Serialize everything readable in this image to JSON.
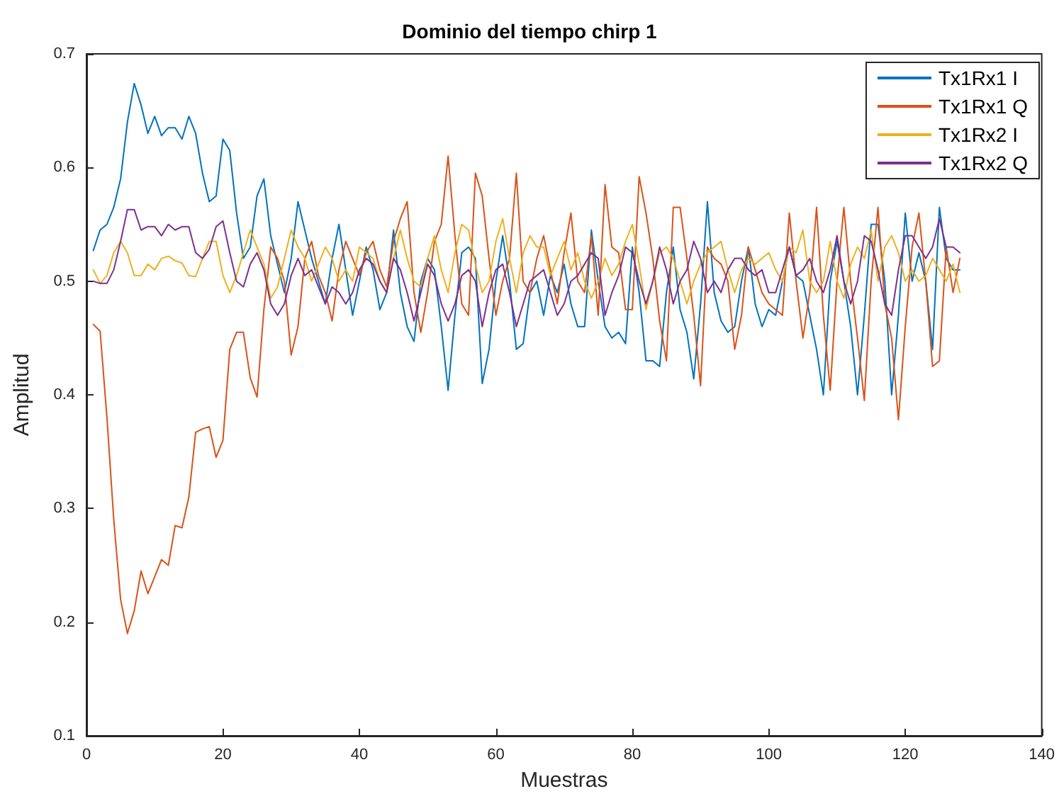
{
  "chart_data": {
    "type": "line",
    "title": "Dominio del tiempo chirp 1",
    "xlabel": "Muestras",
    "ylabel": "Amplitud",
    "x": [
      1,
      2,
      3,
      4,
      5,
      6,
      7,
      8,
      9,
      10,
      11,
      12,
      13,
      14,
      15,
      16,
      17,
      18,
      19,
      20,
      21,
      22,
      23,
      24,
      25,
      26,
      27,
      28,
      29,
      30,
      31,
      32,
      33,
      34,
      35,
      36,
      37,
      38,
      39,
      40,
      41,
      42,
      43,
      44,
      45,
      46,
      47,
      48,
      49,
      50,
      51,
      52,
      53,
      54,
      55,
      56,
      57,
      58,
      59,
      60,
      61,
      62,
      63,
      64,
      65,
      66,
      67,
      68,
      69,
      70,
      71,
      72,
      73,
      74,
      75,
      76,
      77,
      78,
      79,
      80,
      81,
      82,
      83,
      84,
      85,
      86,
      87,
      88,
      89,
      90,
      91,
      92,
      93,
      94,
      95,
      96,
      97,
      98,
      99,
      100,
      101,
      102,
      103,
      104,
      105,
      106,
      107,
      108,
      109,
      110,
      111,
      112,
      113,
      114,
      115,
      116,
      117,
      118,
      119,
      120,
      121,
      122,
      123,
      124,
      125,
      126,
      127,
      128
    ],
    "xlim": [
      0,
      140
    ],
    "xticks": [
      0,
      20,
      40,
      60,
      80,
      100,
      120,
      140
    ],
    "ylim": [
      0.1,
      0.7
    ],
    "yticks": [
      0.1,
      0.2,
      0.3,
      0.4,
      0.5,
      0.6,
      0.7
    ],
    "grid": false,
    "legend": "top right",
    "marker": "none",
    "line_style": "solid",
    "series": [
      {
        "name": "Tx1Rx1 I",
        "color": "#0072bd",
        "values": [
          0.527,
          0.545,
          0.55,
          0.565,
          0.59,
          0.64,
          0.674,
          0.655,
          0.63,
          0.645,
          0.628,
          0.635,
          0.635,
          0.625,
          0.645,
          0.63,
          0.595,
          0.57,
          0.575,
          0.625,
          0.615,
          0.56,
          0.52,
          0.53,
          0.575,
          0.59,
          0.54,
          0.515,
          0.49,
          0.52,
          0.57,
          0.545,
          0.52,
          0.5,
          0.48,
          0.52,
          0.55,
          0.51,
          0.47,
          0.5,
          0.53,
          0.51,
          0.475,
          0.49,
          0.545,
          0.49,
          0.46,
          0.447,
          0.5,
          0.52,
          0.51,
          0.46,
          0.404,
          0.47,
          0.525,
          0.53,
          0.52,
          0.41,
          0.44,
          0.5,
          0.54,
          0.5,
          0.44,
          0.445,
          0.49,
          0.5,
          0.47,
          0.505,
          0.49,
          0.515,
          0.48,
          0.46,
          0.46,
          0.545,
          0.5,
          0.46,
          0.45,
          0.455,
          0.445,
          0.53,
          0.49,
          0.43,
          0.43,
          0.425,
          0.49,
          0.53,
          0.475,
          0.455,
          0.414,
          0.48,
          0.57,
          0.49,
          0.465,
          0.455,
          0.46,
          0.5,
          0.53,
          0.48,
          0.46,
          0.475,
          0.47,
          0.5,
          0.53,
          0.505,
          0.5,
          0.47,
          0.44,
          0.4,
          0.5,
          0.535,
          0.5,
          0.46,
          0.4,
          0.47,
          0.55,
          0.55,
          0.5,
          0.4,
          0.47,
          0.56,
          0.5,
          0.525,
          0.5,
          0.44,
          0.565,
          0.52,
          0.51,
          0.51
        ]
      },
      {
        "name": "Tx1Rx1 Q",
        "color": "#d95319",
        "values": [
          0.462,
          0.456,
          0.38,
          0.29,
          0.22,
          0.19,
          0.21,
          0.245,
          0.225,
          0.24,
          0.255,
          0.25,
          0.285,
          0.283,
          0.31,
          0.367,
          0.37,
          0.372,
          0.345,
          0.36,
          0.44,
          0.455,
          0.455,
          0.415,
          0.398,
          0.475,
          0.53,
          0.52,
          0.5,
          0.435,
          0.46,
          0.52,
          0.535,
          0.505,
          0.49,
          0.465,
          0.51,
          0.535,
          0.52,
          0.505,
          0.525,
          0.535,
          0.51,
          0.495,
          0.535,
          0.555,
          0.57,
          0.49,
          0.455,
          0.49,
          0.535,
          0.55,
          0.61,
          0.54,
          0.48,
          0.47,
          0.595,
          0.575,
          0.52,
          0.47,
          0.5,
          0.52,
          0.595,
          0.5,
          0.49,
          0.52,
          0.54,
          0.51,
          0.48,
          0.525,
          0.56,
          0.5,
          0.49,
          0.54,
          0.47,
          0.585,
          0.53,
          0.525,
          0.475,
          0.475,
          0.592,
          0.56,
          0.52,
          0.465,
          0.43,
          0.565,
          0.565,
          0.52,
          0.47,
          0.408,
          0.53,
          0.52,
          0.515,
          0.5,
          0.44,
          0.47,
          0.53,
          0.51,
          0.49,
          0.48,
          0.475,
          0.47,
          0.56,
          0.5,
          0.45,
          0.49,
          0.565,
          0.47,
          0.404,
          0.5,
          0.565,
          0.5,
          0.45,
          0.395,
          0.5,
          0.565,
          0.48,
          0.45,
          0.378,
          0.46,
          0.53,
          0.56,
          0.5,
          0.425,
          0.43,
          0.53,
          0.49,
          0.52
        ]
      },
      {
        "name": "Tx1Rx2 I",
        "color": "#edb120",
        "values": [
          0.51,
          0.498,
          0.505,
          0.525,
          0.535,
          0.525,
          0.505,
          0.505,
          0.515,
          0.51,
          0.52,
          0.522,
          0.518,
          0.516,
          0.505,
          0.504,
          0.52,
          0.535,
          0.535,
          0.505,
          0.49,
          0.505,
          0.525,
          0.545,
          0.53,
          0.515,
          0.485,
          0.495,
          0.52,
          0.545,
          0.53,
          0.52,
          0.5,
          0.515,
          0.53,
          0.52,
          0.5,
          0.51,
          0.5,
          0.53,
          0.525,
          0.52,
          0.5,
          0.49,
          0.52,
          0.545,
          0.52,
          0.5,
          0.495,
          0.52,
          0.54,
          0.51,
          0.49,
          0.525,
          0.55,
          0.545,
          0.515,
          0.49,
          0.5,
          0.535,
          0.555,
          0.52,
          0.49,
          0.525,
          0.54,
          0.53,
          0.53,
          0.505,
          0.52,
          0.535,
          0.51,
          0.525,
          0.5,
          0.485,
          0.5,
          0.52,
          0.505,
          0.515,
          0.535,
          0.55,
          0.515,
          0.475,
          0.5,
          0.525,
          0.53,
          0.52,
          0.5,
          0.48,
          0.5,
          0.515,
          0.525,
          0.53,
          0.535,
          0.51,
          0.49,
          0.51,
          0.52,
          0.515,
          0.52,
          0.525,
          0.51,
          0.5,
          0.53,
          0.525,
          0.545,
          0.5,
          0.49,
          0.5,
          0.535,
          0.5,
          0.485,
          0.515,
          0.53,
          0.52,
          0.545,
          0.5,
          0.53,
          0.54,
          0.525,
          0.5,
          0.51,
          0.5,
          0.505,
          0.52,
          0.51,
          0.5,
          0.515,
          0.49
        ]
      },
      {
        "name": "Tx1Rx2 Q",
        "color": "#7e2f8e",
        "values": [
          0.5,
          0.498,
          0.498,
          0.51,
          0.535,
          0.563,
          0.563,
          0.545,
          0.548,
          0.548,
          0.54,
          0.55,
          0.545,
          0.548,
          0.548,
          0.525,
          0.52,
          0.528,
          0.548,
          0.553,
          0.525,
          0.5,
          0.495,
          0.515,
          0.525,
          0.51,
          0.48,
          0.47,
          0.48,
          0.505,
          0.52,
          0.505,
          0.51,
          0.495,
          0.48,
          0.495,
          0.49,
          0.48,
          0.49,
          0.51,
          0.52,
          0.515,
          0.5,
          0.49,
          0.52,
          0.51,
          0.49,
          0.465,
          0.49,
          0.515,
          0.505,
          0.48,
          0.465,
          0.48,
          0.505,
          0.51,
          0.5,
          0.46,
          0.49,
          0.51,
          0.515,
          0.49,
          0.46,
          0.48,
          0.5,
          0.505,
          0.51,
          0.49,
          0.47,
          0.48,
          0.5,
          0.505,
          0.515,
          0.525,
          0.52,
          0.47,
          0.49,
          0.505,
          0.53,
          0.525,
          0.5,
          0.48,
          0.5,
          0.53,
          0.51,
          0.48,
          0.5,
          0.51,
          0.535,
          0.52,
          0.49,
          0.5,
          0.49,
          0.51,
          0.52,
          0.52,
          0.51,
          0.505,
          0.51,
          0.49,
          0.49,
          0.51,
          0.53,
          0.505,
          0.51,
          0.52,
          0.5,
          0.49,
          0.51,
          0.54,
          0.5,
          0.48,
          0.5,
          0.54,
          0.535,
          0.51,
          0.48,
          0.47,
          0.51,
          0.54,
          0.54,
          0.53,
          0.52,
          0.53,
          0.555,
          0.53,
          0.53,
          0.525
        ]
      }
    ]
  }
}
